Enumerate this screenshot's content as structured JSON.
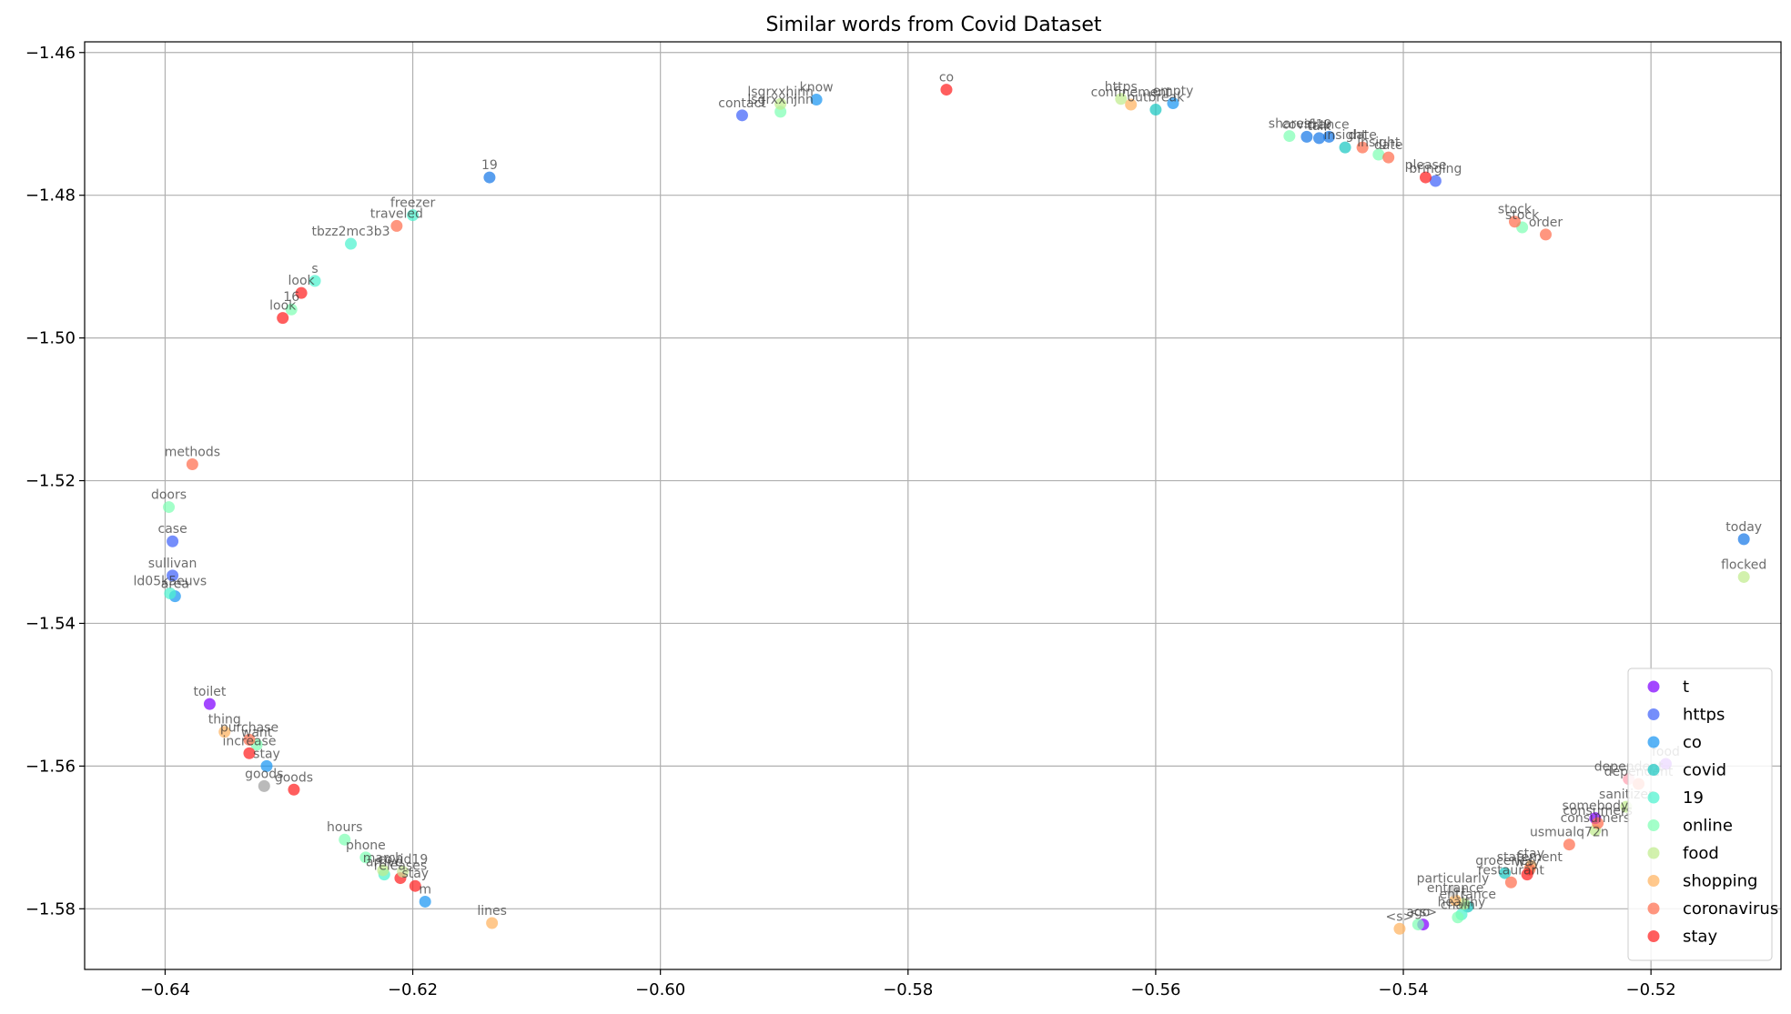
{
  "chart_data": {
    "type": "scatter",
    "title": "Similar words from Covid Dataset",
    "xlabel": "",
    "ylabel": "",
    "xlim": [
      -0.6465,
      -0.5095
    ],
    "ylim": [
      -1.5885,
      -1.4585
    ],
    "xticks": [
      -0.64,
      -0.62,
      -0.6,
      -0.58,
      -0.56,
      -0.54,
      -0.52
    ],
    "xtick_labels": [
      "−0.64",
      "−0.62",
      "−0.60",
      "−0.58",
      "−0.56",
      "−0.54",
      "−0.52"
    ],
    "yticks": [
      -1.46,
      -1.48,
      -1.5,
      -1.52,
      -1.54,
      -1.56,
      -1.58
    ],
    "ytick_labels": [
      "−1.46",
      "−1.48",
      "−1.50",
      "−1.52",
      "−1.54",
      "−1.56",
      "−1.58"
    ],
    "grid": true,
    "legend_position": "lower-right",
    "series": [
      {
        "name": "t",
        "color": "#8000ff",
        "points": [
          {
            "x": -0.6364,
            "y": -1.5513,
            "label": "toilet"
          },
          {
            "x": -0.5384,
            "y": -1.5822,
            "label": "<s>"
          },
          {
            "x": -0.5245,
            "y": -1.5673,
            "label": "somebody"
          },
          {
            "x": -0.5188,
            "y": -1.5597,
            "label": "food"
          }
        ]
      },
      {
        "name": "https",
        "color": "#4062fa",
        "points": [
          {
            "x": -0.5934,
            "y": -1.4688,
            "label": "contact"
          },
          {
            "x": -0.6394,
            "y": -1.5285,
            "label": "case"
          },
          {
            "x": -0.6394,
            "y": -1.5333,
            "label": "sullivan"
          },
          {
            "x": -0.5374,
            "y": -1.478,
            "label": "bringing"
          }
        ]
      },
      {
        "name": "co",
        "color": "#1996f3",
        "points": [
          {
            "x": -0.5586,
            "y": -1.4671,
            "label": "empty"
          },
          {
            "x": -0.5874,
            "y": -1.4666,
            "label": "know"
          },
          {
            "x": -0.6392,
            "y": -1.5362,
            "label": "area"
          },
          {
            "x": -0.6318,
            "y": -1.56,
            "label": "stay"
          },
          {
            "x": -0.619,
            "y": -1.579,
            "label": "m"
          }
        ]
      },
      {
        "name": "covid",
        "color": "#1ac7c2",
        "points": [
          {
            "x": -0.56,
            "y": -1.468,
            "label": "outbreak"
          },
          {
            "x": -0.5447,
            "y": -1.4733,
            "label": "insight"
          },
          {
            "x": -0.5348,
            "y": -1.5797,
            "label": "entrance"
          },
          {
            "x": -0.5318,
            "y": -1.575,
            "label": "groceries"
          }
        ]
      },
      {
        "name": "19",
        "color": "#4cf2ce",
        "points": [
          {
            "x": -0.62,
            "y": -1.4828,
            "label": "freezer"
          },
          {
            "x": -0.625,
            "y": -1.4868,
            "label": "tbzz2mc3b3"
          },
          {
            "x": -0.6279,
            "y": -1.492,
            "label": "s"
          },
          {
            "x": -0.6396,
            "y": -1.5358,
            "label": "ld05k5euvs"
          },
          {
            "x": -0.6223,
            "y": -1.5752,
            "label": "arrive"
          },
          {
            "x": -0.5353,
            "y": -1.5808,
            "label": "healthy"
          }
        ]
      },
      {
        "name": "online",
        "color": "#80ffb4",
        "points": [
          {
            "x": -0.5903,
            "y": -1.4683,
            "label": "lsgrxxhjnn"
          },
          {
            "x": -0.6298,
            "y": -1.496,
            "label": "16"
          },
          {
            "x": -0.6397,
            "y": -1.5237,
            "label": "doors"
          },
          {
            "x": -0.6326,
            "y": -1.557,
            "label": "want"
          },
          {
            "x": -0.6255,
            "y": -1.5703,
            "label": "hours"
          },
          {
            "x": -0.6238,
            "y": -1.5728,
            "label": "phone"
          },
          {
            "x": -0.5492,
            "y": -1.4717,
            "label": "shares"
          },
          {
            "x": -0.542,
            "y": -1.4743,
            "label": "insight"
          },
          {
            "x": -0.5304,
            "y": -1.4845,
            "label": "stock"
          },
          {
            "x": -0.5388,
            "y": -1.5822,
            "label": "ago"
          },
          {
            "x": -0.5356,
            "y": -1.5812,
            "label": "chain"
          }
        ]
      },
      {
        "name": "food",
        "color": "#c1eb8d",
        "points": [
          {
            "x": -0.5903,
            "y": -1.4672,
            "label": "lsgrxxhjnn"
          },
          {
            "x": -0.5628,
            "y": -1.4665,
            "label": "https"
          },
          {
            "x": -0.6224,
            "y": -1.5746,
            "label": "march"
          },
          {
            "x": -0.5351,
            "y": -1.5793,
            "label": "t"
          },
          {
            "x": -0.5245,
            "y": -1.569,
            "label": "consumers"
          },
          {
            "x": -0.522,
            "y": -1.5657,
            "label": "sanitizer"
          },
          {
            "x": -0.5125,
            "y": -1.5335,
            "label": "flocked"
          }
        ]
      },
      {
        "name": "shopping",
        "color": "#ffb360",
        "points": [
          {
            "x": -0.6352,
            "y": -1.5552,
            "label": "thing"
          },
          {
            "x": -0.562,
            "y": -1.4673,
            "label": "confinement"
          },
          {
            "x": -0.6136,
            "y": -1.582,
            "label": "lines"
          },
          {
            "x": -0.5403,
            "y": -1.5828,
            "label": "<s>"
          },
          {
            "x": -0.5358,
            "y": -1.5788,
            "label": "entrance"
          },
          {
            "x": -0.5297,
            "y": -1.574,
            "label": "stay"
          }
        ]
      },
      {
        "name": "coronavirus",
        "color": "#ff6d4e",
        "points": [
          {
            "x": -0.6213,
            "y": -1.4843,
            "label": "traveled"
          },
          {
            "x": -0.6378,
            "y": -1.5177,
            "label": "methods"
          },
          {
            "x": -0.6332,
            "y": -1.5563,
            "label": "purchase"
          },
          {
            "x": -0.5433,
            "y": -1.4733,
            "label": "date"
          },
          {
            "x": -0.5412,
            "y": -1.4747,
            "label": "date"
          },
          {
            "x": -0.531,
            "y": -1.4837,
            "label": "stock"
          },
          {
            "x": -0.5285,
            "y": -1.4855,
            "label": "order"
          },
          {
            "x": -0.5266,
            "y": -1.571,
            "label": "usmualq72n"
          },
          {
            "x": -0.5313,
            "y": -1.5763,
            "label": "restaurant"
          },
          {
            "x": -0.5298,
            "y": -1.5745,
            "label": "statement"
          },
          {
            "x": -0.5243,
            "y": -1.568,
            "label": "consumers"
          },
          {
            "x": -0.521,
            "y": -1.5625,
            "label": "dependent"
          }
        ]
      },
      {
        "name": "stay",
        "color": "#ff2020",
        "points": [
          {
            "x": -0.5769,
            "y": -1.4652,
            "label": "co"
          },
          {
            "x": -0.629,
            "y": -1.4937,
            "label": "look"
          },
          {
            "x": -0.6305,
            "y": -1.4972,
            "label": "look"
          },
          {
            "x": -0.6332,
            "y": -1.5582,
            "label": "increase"
          },
          {
            "x": -0.6296,
            "y": -1.5633,
            "label": "goods"
          },
          {
            "x": -0.621,
            "y": -1.5757,
            "label": "releases"
          },
          {
            "x": -0.6198,
            "y": -1.5768,
            "label": "stay"
          },
          {
            "x": -0.5382,
            "y": -1.4775,
            "label": "please"
          },
          {
            "x": -0.53,
            "y": -1.5752,
            "label": "way"
          }
        ]
      }
    ],
    "extra_points": [
      {
        "x": -0.6138,
        "y": -1.4775,
        "label": "19",
        "color": "#1878e8"
      },
      {
        "x": -0.5478,
        "y": -1.4718,
        "label": "covid19",
        "color": "#1878e8"
      },
      {
        "x": -0.5468,
        "y": -1.472,
        "label": "talk",
        "color": "#1878e8"
      },
      {
        "x": -0.546,
        "y": -1.4718,
        "label": "france",
        "color": "#1878e8"
      },
      {
        "x": -0.632,
        "y": -1.5628,
        "label": "goods",
        "color": "#a0a0a0"
      },
      {
        "x": -0.6208,
        "y": -1.5748,
        "label": "covid19",
        "color": "#c8e69a"
      },
      {
        "x": -0.5125,
        "y": -1.5282,
        "label": "today",
        "color": "#1878e8"
      },
      {
        "x": -0.5218,
        "y": -1.5618,
        "label": "dependent",
        "color": "#ffa0b0"
      },
      {
        "x": -0.536,
        "y": -1.5775,
        "label": "particularly",
        "color": "#c8c8c8"
      }
    ]
  }
}
